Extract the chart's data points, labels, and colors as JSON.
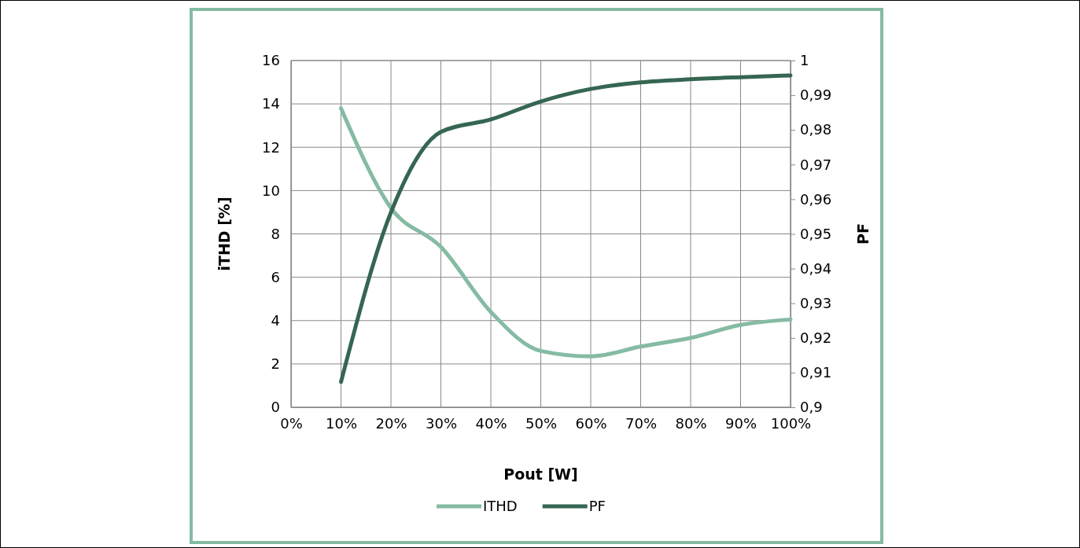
{
  "chart_data": {
    "type": "line",
    "xlabel": "Pout [W]",
    "ylabel": "iTHD [%]",
    "y2label": "PF",
    "x": [
      10,
      20,
      30,
      40,
      50,
      60,
      70,
      80,
      90,
      100
    ],
    "series": [
      {
        "name": "ITHD",
        "color": "#85bba3",
        "values": [
          13.8,
          9.2,
          7.4,
          4.4,
          2.6,
          2.35,
          2.8,
          3.2,
          3.8,
          4.05
        ]
      },
      {
        "name": "PF",
        "color": "#356652",
        "axis": "y2",
        "values": [
          0.9073,
          0.9562,
          0.9794,
          0.983,
          0.9882,
          0.9918,
          0.9937,
          0.9946,
          0.9952,
          0.9957
        ]
      }
    ],
    "xlim": [
      0,
      100
    ],
    "xticks": [
      {
        "value": 0,
        "label": "0%"
      },
      {
        "value": 10,
        "label": "10%"
      },
      {
        "value": 20,
        "label": "20%"
      },
      {
        "value": 30,
        "label": "30%"
      },
      {
        "value": 40,
        "label": "40%"
      },
      {
        "value": 50,
        "label": "50%"
      },
      {
        "value": 60,
        "label": "60%"
      },
      {
        "value": 70,
        "label": "70%"
      },
      {
        "value": 80,
        "label": "80%"
      },
      {
        "value": 90,
        "label": "90%"
      },
      {
        "value": 100,
        "label": "100%"
      }
    ],
    "ylim": [
      0,
      16
    ],
    "yticks": [
      0,
      2,
      4,
      6,
      8,
      10,
      12,
      14,
      16
    ],
    "y2lim": [
      0.9,
      1
    ],
    "y2ticks": [
      {
        "value": 0.9,
        "label": "0,9"
      },
      {
        "value": 0.91,
        "label": "0,91"
      },
      {
        "value": 0.92,
        "label": "0,92"
      },
      {
        "value": 0.93,
        "label": "0,93"
      },
      {
        "value": 0.94,
        "label": "0,94"
      },
      {
        "value": 0.95,
        "label": "0,95"
      },
      {
        "value": 0.96,
        "label": "0,96"
      },
      {
        "value": 0.97,
        "label": "0,97"
      },
      {
        "value": 0.98,
        "label": "0,98"
      },
      {
        "value": 0.99,
        "label": "0,99"
      },
      {
        "value": 1,
        "label": "1"
      }
    ],
    "grid": true,
    "legend": "bottom",
    "marker": "none",
    "line_style": "solid"
  }
}
